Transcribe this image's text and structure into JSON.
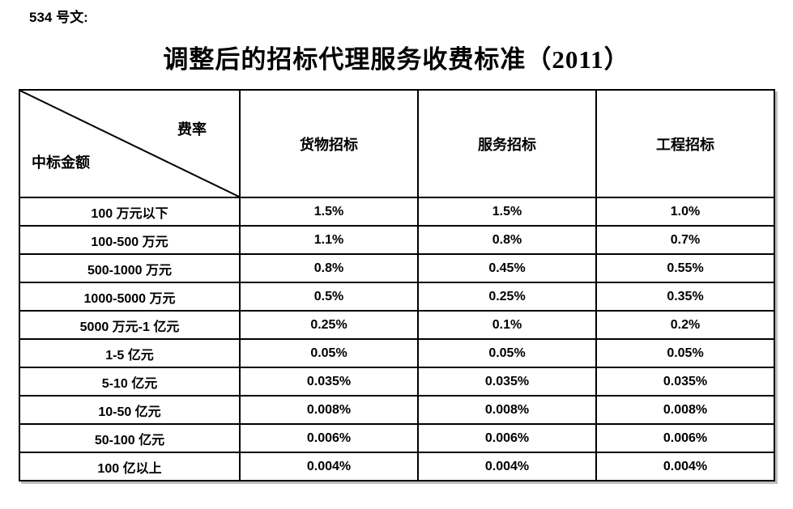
{
  "doc": {
    "doc_number": "534 号文:",
    "title": "调整后的招标代理服务收费标准（2011）"
  },
  "table": {
    "corner": {
      "top_right": "费率",
      "bottom_left": "中标金额"
    },
    "columns": [
      "货物招标",
      "服务招标",
      "工程招标"
    ],
    "rows": [
      {
        "label": "100 万元以下",
        "values": [
          "1.5%",
          "1.5%",
          "1.0%"
        ]
      },
      {
        "label": "100-500 万元",
        "values": [
          "1.1%",
          "0.8%",
          "0.7%"
        ]
      },
      {
        "label": "500-1000 万元",
        "values": [
          "0.8%",
          "0.45%",
          "0.55%"
        ]
      },
      {
        "label": "1000-5000 万元",
        "values": [
          "0.5%",
          "0.25%",
          "0.35%"
        ]
      },
      {
        "label": "5000 万元-1 亿元",
        "values": [
          "0.25%",
          "0.1%",
          "0.2%"
        ]
      },
      {
        "label": "1-5 亿元",
        "values": [
          "0.05%",
          "0.05%",
          "0.05%"
        ]
      },
      {
        "label": "5-10 亿元",
        "values": [
          "0.035%",
          "0.035%",
          "0.035%"
        ]
      },
      {
        "label": "10-50 亿元",
        "values": [
          "0.008%",
          "0.008%",
          "0.008%"
        ]
      },
      {
        "label": "50-100 亿元",
        "values": [
          "0.006%",
          "0.006%",
          "0.006%"
        ]
      },
      {
        "label": "100 亿以上",
        "values": [
          "0.004%",
          "0.004%",
          "0.004%"
        ]
      }
    ]
  },
  "colors": {
    "border": "#000000",
    "background": "#ffffff",
    "text": "#000000"
  }
}
